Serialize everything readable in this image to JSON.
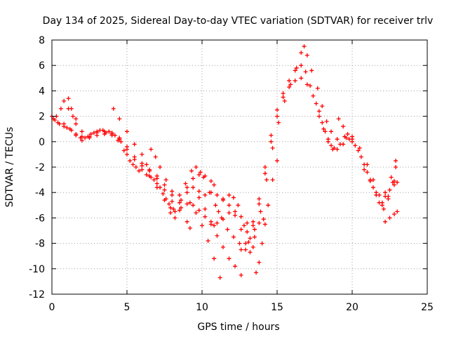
{
  "chart_data": {
    "type": "scatter",
    "title": "Day 134 of 2025, Sidereal Day-to-day VTEC variation (SDTVAR) for receiver trlv",
    "xlabel": "GPS time / hours",
    "ylabel": "SDTVAR / TECUs",
    "xlim": [
      0,
      25
    ],
    "ylim": [
      -12,
      8
    ],
    "x_ticks": [
      0,
      5,
      10,
      15,
      20,
      25
    ],
    "y_ticks": [
      -12,
      -10,
      -8,
      -6,
      -4,
      -2,
      0,
      2,
      4,
      6,
      8
    ],
    "grid": true,
    "marker": "+",
    "color": "#ff0000",
    "series": [
      {
        "points": [
          [
            0.0,
            2.0
          ],
          [
            0.2,
            1.7
          ],
          [
            0.5,
            1.4
          ],
          [
            0.8,
            1.2
          ],
          [
            1.0,
            1.1
          ],
          [
            1.3,
            0.9
          ],
          [
            1.6,
            0.6
          ],
          [
            1.9,
            0.3
          ],
          [
            2.2,
            0.3
          ],
          [
            2.6,
            0.6
          ],
          [
            3.0,
            0.8
          ],
          [
            3.4,
            0.9
          ],
          [
            3.8,
            0.8
          ],
          [
            4.2,
            0.5
          ],
          [
            4.6,
            0.0
          ],
          [
            5.0,
            -1.0
          ],
          [
            5.4,
            -1.8
          ],
          [
            5.8,
            -2.3
          ],
          [
            6.3,
            -2.6
          ],
          [
            6.8,
            -3.0
          ],
          [
            7.2,
            -3.6
          ],
          [
            7.6,
            -4.5
          ],
          [
            7.9,
            -5.2
          ],
          [
            8.2,
            -5.5
          ],
          [
            8.6,
            -5.2
          ],
          [
            9.0,
            -4.9
          ],
          [
            9.4,
            -5.0
          ],
          [
            9.8,
            -5.4
          ],
          [
            10.2,
            -5.9
          ],
          [
            10.6,
            -6.3
          ],
          [
            11.0,
            -6.4
          ],
          [
            11.4,
            -6.1
          ],
          [
            11.8,
            -5.6
          ],
          [
            12.2,
            -5.5
          ],
          [
            12.6,
            -5.9
          ],
          [
            13.0,
            -6.4
          ],
          [
            13.4,
            -6.6
          ],
          [
            13.8,
            -4.9
          ],
          [
            14.2,
            -2.5
          ],
          [
            14.6,
            0.0
          ],
          [
            15.0,
            2.0
          ],
          [
            15.4,
            3.5
          ],
          [
            15.8,
            4.3
          ],
          [
            16.2,
            4.8
          ],
          [
            16.6,
            5.0
          ],
          [
            17.0,
            4.5
          ],
          [
            17.4,
            3.6
          ],
          [
            17.8,
            2.4
          ],
          [
            18.2,
            0.8
          ],
          [
            18.6,
            -0.3
          ],
          [
            19.0,
            -0.6
          ],
          [
            19.4,
            -0.2
          ],
          [
            19.8,
            0.2
          ],
          [
            20.2,
            -0.3
          ],
          [
            20.6,
            -1.2
          ],
          [
            21.0,
            -2.4
          ],
          [
            21.4,
            -3.6
          ],
          [
            21.8,
            -4.8
          ],
          [
            22.1,
            -5.3
          ],
          [
            22.4,
            -4.5
          ],
          [
            22.7,
            -3.2
          ],
          [
            22.9,
            -2.0
          ]
        ]
      },
      {
        "points": [
          [
            0.1,
            1.8
          ],
          [
            0.4,
            1.5
          ],
          [
            0.8,
            1.4
          ],
          [
            1.2,
            1.0
          ],
          [
            1.6,
            0.5
          ],
          [
            2.0,
            0.1
          ],
          [
            2.4,
            0.4
          ],
          [
            2.8,
            0.7
          ],
          [
            3.2,
            0.9
          ],
          [
            3.6,
            0.7
          ],
          [
            4.0,
            0.5
          ],
          [
            4.4,
            0.1
          ],
          [
            4.8,
            -0.7
          ],
          [
            5.2,
            -1.5
          ],
          [
            5.6,
            -2.0
          ],
          [
            6.0,
            -2.2
          ],
          [
            6.5,
            -2.7
          ],
          [
            7.0,
            -3.3
          ],
          [
            7.4,
            -4.1
          ],
          [
            7.8,
            -4.9
          ],
          [
            8.1,
            -5.3
          ],
          [
            8.5,
            -4.8
          ],
          [
            9.0,
            -4.0
          ],
          [
            9.4,
            -3.6
          ],
          [
            9.8,
            -3.9
          ],
          [
            10.2,
            -4.2
          ],
          [
            10.6,
            -4.0
          ],
          [
            11.0,
            -4.2
          ],
          [
            11.4,
            -4.5
          ],
          [
            11.8,
            -5.0
          ],
          [
            12.2,
            -5.8
          ],
          [
            12.6,
            -6.9
          ],
          [
            13.0,
            -7.1
          ],
          [
            13.4,
            -6.3
          ],
          [
            13.8,
            -4.5
          ],
          [
            14.2,
            -2.0
          ],
          [
            14.6,
            0.5
          ],
          [
            15.0,
            2.5
          ],
          [
            15.4,
            3.8
          ],
          [
            15.8,
            4.8
          ],
          [
            16.2,
            5.6
          ],
          [
            16.6,
            6.0
          ],
          [
            16.9,
            5.5
          ],
          [
            17.2,
            4.4
          ],
          [
            17.6,
            3.0
          ],
          [
            18.0,
            1.5
          ],
          [
            18.4,
            0.2
          ],
          [
            18.8,
            -0.5
          ],
          [
            19.2,
            -0.2
          ],
          [
            19.6,
            0.3
          ],
          [
            20.0,
            0.0
          ],
          [
            20.4,
            -0.7
          ],
          [
            20.8,
            -1.8
          ],
          [
            21.2,
            -3.0
          ],
          [
            21.6,
            -4.2
          ],
          [
            22.0,
            -5.0
          ],
          [
            22.4,
            -4.3
          ],
          [
            22.8,
            -3.1
          ]
        ]
      },
      {
        "points": [
          [
            0.3,
            2.0
          ],
          [
            0.6,
            2.6
          ],
          [
            0.8,
            3.2
          ],
          [
            1.1,
            2.6
          ],
          [
            1.4,
            2.0
          ],
          [
            1.6,
            1.4
          ],
          [
            2.0,
            0.4
          ],
          [
            2.5,
            0.4
          ],
          [
            3.0,
            0.7
          ],
          [
            3.5,
            0.8
          ],
          [
            4.0,
            0.6
          ],
          [
            4.5,
            0.2
          ],
          [
            5.0,
            -0.6
          ],
          [
            5.5,
            -1.4
          ],
          [
            6.0,
            -1.9
          ],
          [
            6.5,
            -2.3
          ],
          [
            7.0,
            -2.9
          ],
          [
            7.5,
            -3.8
          ],
          [
            8.0,
            -4.7
          ],
          [
            8.5,
            -4.2
          ],
          [
            8.9,
            -3.3
          ],
          [
            9.3,
            -2.3
          ],
          [
            9.6,
            -2.0
          ],
          [
            9.9,
            -2.4
          ],
          [
            10.1,
            -2.8
          ],
          [
            10.5,
            -4.0
          ],
          [
            10.9,
            -5.0
          ],
          [
            11.3,
            -6.0
          ],
          [
            11.7,
            -6.9
          ],
          [
            12.1,
            -7.5
          ],
          [
            12.5,
            -8.0
          ],
          [
            12.9,
            -8.5
          ],
          [
            13.2,
            -8.7
          ],
          [
            13.5,
            -7.5
          ],
          [
            13.9,
            -5.5
          ],
          [
            14.3,
            -3.0
          ],
          [
            14.7,
            -0.5
          ],
          [
            15.1,
            1.5
          ],
          [
            15.5,
            3.2
          ],
          [
            15.9,
            4.5
          ],
          [
            16.3,
            5.8
          ],
          [
            16.6,
            7.0
          ],
          [
            16.8,
            7.5
          ],
          [
            17.0,
            6.8
          ],
          [
            17.3,
            5.6
          ],
          [
            17.7,
            4.2
          ],
          [
            18.0,
            2.8
          ],
          [
            18.3,
            1.6
          ],
          [
            18.6,
            0.8
          ],
          [
            19.0,
            0.2
          ],
          [
            19.5,
            0.4
          ],
          [
            20.0,
            0.4
          ],
          [
            20.5,
            -0.5
          ],
          [
            21.0,
            -1.8
          ],
          [
            21.4,
            -3.0
          ],
          [
            21.8,
            -4.2
          ],
          [
            22.2,
            -4.0
          ],
          [
            22.6,
            -2.8
          ],
          [
            22.9,
            -1.5
          ]
        ]
      },
      {
        "points": [
          [
            1.1,
            3.4
          ],
          [
            1.3,
            2.6
          ],
          [
            1.6,
            1.8
          ],
          [
            2.0,
            0.8
          ],
          [
            2.5,
            0.3
          ],
          [
            3.0,
            0.5
          ],
          [
            3.5,
            0.6
          ],
          [
            4.0,
            0.7
          ],
          [
            4.5,
            0.3
          ],
          [
            5.0,
            -0.4
          ],
          [
            5.5,
            -1.2
          ],
          [
            6.0,
            -1.7
          ],
          [
            6.5,
            -2.2
          ],
          [
            7.0,
            -2.7
          ],
          [
            7.5,
            -3.4
          ],
          [
            8.0,
            -4.2
          ],
          [
            8.5,
            -5.4
          ],
          [
            9.0,
            -6.3
          ],
          [
            9.2,
            -6.8
          ]
        ]
      },
      {
        "points": [
          [
            4.1,
            2.6
          ],
          [
            4.5,
            1.8
          ],
          [
            5.0,
            0.8
          ],
          [
            5.5,
            -0.2
          ],
          [
            6.0,
            -1.0
          ],
          [
            6.3,
            -1.8
          ],
          [
            6.6,
            -2.8
          ],
          [
            7.0,
            -3.6
          ],
          [
            7.5,
            -4.6
          ],
          [
            7.9,
            -5.6
          ],
          [
            8.2,
            -6.0
          ]
        ]
      },
      {
        "points": [
          [
            6.6,
            -0.6
          ],
          [
            6.9,
            -1.2
          ],
          [
            7.2,
            -2.0
          ],
          [
            7.6,
            -3.0
          ],
          [
            8.0,
            -3.9
          ]
        ]
      },
      {
        "points": [
          [
            8.6,
            -4.6
          ],
          [
            9.0,
            -3.6
          ],
          [
            9.4,
            -2.9
          ],
          [
            9.8,
            -2.6
          ],
          [
            10.2,
            -2.7
          ],
          [
            10.6,
            -3.1
          ],
          [
            10.8,
            -3.4
          ]
        ]
      },
      {
        "points": [
          [
            9.2,
            -4.8
          ],
          [
            9.6,
            -5.6
          ],
          [
            10.0,
            -6.6
          ],
          [
            10.4,
            -7.8
          ],
          [
            10.8,
            -9.2
          ],
          [
            11.2,
            -10.7
          ]
        ]
      },
      {
        "points": [
          [
            9.8,
            -4.4
          ],
          [
            10.2,
            -5.3
          ],
          [
            10.6,
            -6.5
          ],
          [
            11.0,
            -7.4
          ],
          [
            11.4,
            -8.3
          ],
          [
            11.8,
            -9.2
          ],
          [
            12.2,
            -9.8
          ],
          [
            12.6,
            -10.5
          ]
        ]
      },
      {
        "points": [
          [
            10.8,
            -6.6
          ],
          [
            11.1,
            -5.5
          ],
          [
            11.4,
            -4.6
          ],
          [
            11.8,
            -4.2
          ],
          [
            12.1,
            -4.4
          ],
          [
            12.4,
            -5.0
          ],
          [
            12.8,
            -6.6
          ],
          [
            13.1,
            -7.9
          ],
          [
            13.4,
            -8.3
          ]
        ]
      },
      {
        "points": [
          [
            12.6,
            -8.5
          ],
          [
            12.9,
            -8.0
          ],
          [
            13.2,
            -7.6
          ],
          [
            13.5,
            -6.9
          ],
          [
            13.8,
            -6.4
          ],
          [
            14.1,
            -6.1
          ]
        ]
      },
      {
        "points": [
          [
            13.6,
            -10.3
          ],
          [
            13.8,
            -9.5
          ],
          [
            14.0,
            -8.0
          ],
          [
            14.2,
            -6.5
          ],
          [
            14.4,
            -5.0
          ],
          [
            14.7,
            -3.0
          ],
          [
            15.0,
            -1.5
          ]
        ]
      },
      {
        "points": [
          [
            17.8,
            2.0
          ],
          [
            18.1,
            1.0
          ],
          [
            18.4,
            0.0
          ],
          [
            18.7,
            -0.6
          ]
        ]
      },
      {
        "points": [
          [
            19.1,
            1.8
          ],
          [
            19.4,
            1.2
          ],
          [
            19.7,
            0.6
          ],
          [
            20.0,
            0.2
          ]
        ]
      },
      {
        "points": [
          [
            20.8,
            -2.2
          ],
          [
            21.2,
            -3.1
          ],
          [
            21.6,
            -4.0
          ],
          [
            22.0,
            -4.8
          ]
        ]
      },
      {
        "points": [
          [
            22.2,
            -4.3
          ],
          [
            22.5,
            -3.8
          ],
          [
            22.8,
            -3.4
          ],
          [
            23.0,
            -3.2
          ]
        ]
      },
      {
        "points": [
          [
            22.2,
            -6.3
          ],
          [
            22.5,
            -6.0
          ],
          [
            22.8,
            -5.7
          ],
          [
            23.0,
            -5.5
          ]
        ]
      }
    ]
  }
}
